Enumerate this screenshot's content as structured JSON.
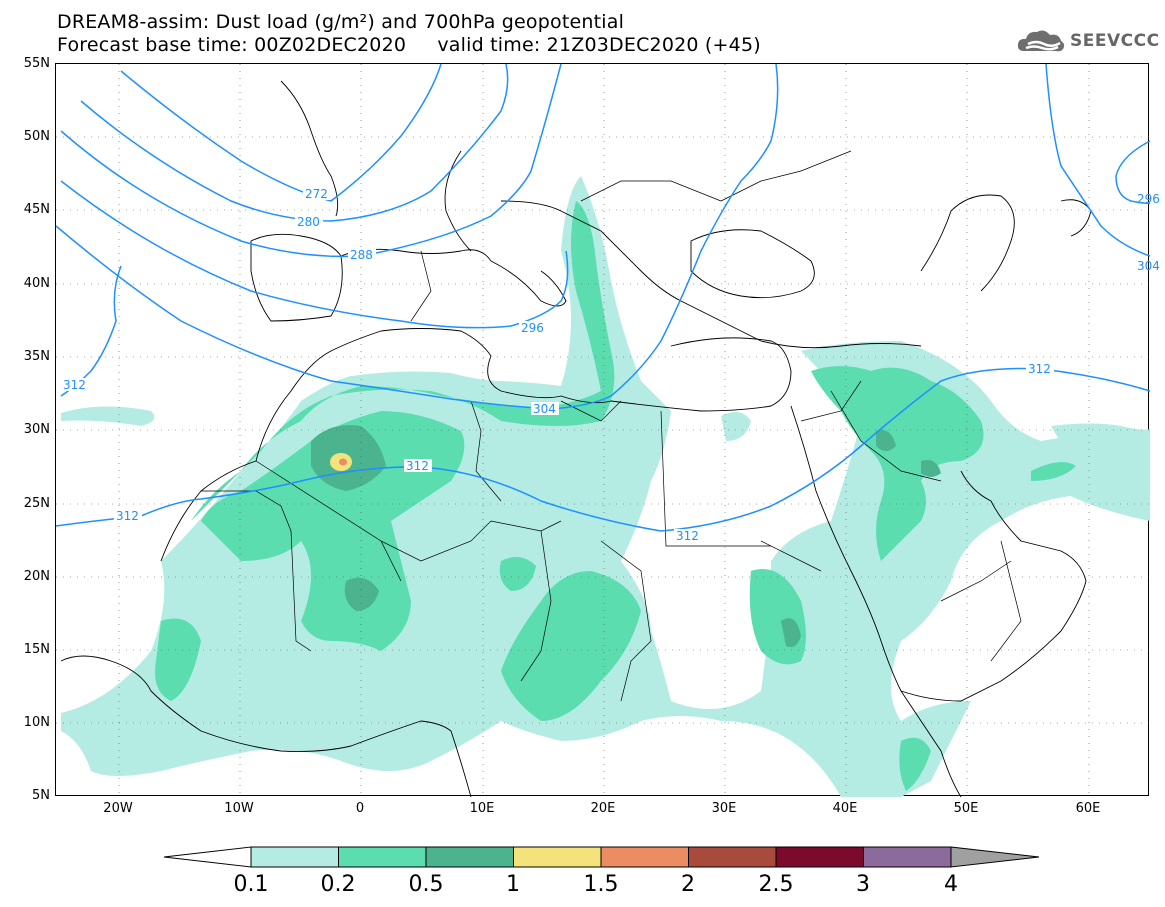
{
  "title_line1": "DREAM8-assim: Dust load (g/m²) and 700hPa geopotential",
  "title_line2": "Forecast base time: 00Z02DEC2020     valid time: 21Z03DEC2020 (+45)",
  "logo": {
    "text": "SEEVCCC",
    "icon": "cloud-icon"
  },
  "map": {
    "lat_labels": [
      "55N",
      "50N",
      "45N",
      "40N",
      "35N",
      "30N",
      "25N",
      "20N",
      "15N",
      "10N",
      "5N"
    ],
    "lon_labels": [
      "20W",
      "10W",
      "0",
      "10E",
      "20E",
      "30E",
      "40E",
      "50E",
      "60E"
    ],
    "geopotential_contours": [
      {
        "label": "272"
      },
      {
        "label": "280"
      },
      {
        "label": "288"
      },
      {
        "label": "296"
      },
      {
        "label": "304"
      },
      {
        "label": "312"
      },
      {
        "label": "312"
      },
      {
        "label": "312"
      },
      {
        "label": "312"
      },
      {
        "label": "312"
      },
      {
        "label": "296"
      },
      {
        "label": "304"
      }
    ]
  },
  "colorbar": {
    "levels": [
      "0.1",
      "0.2",
      "0.5",
      "1",
      "1.5",
      "2",
      "2.5",
      "3",
      "4"
    ],
    "colors": [
      "#ffffff",
      "#b4ece4",
      "#5cddb0",
      "#4bb48f",
      "#f4e27a",
      "#ec8c62",
      "#a84b3c",
      "#7c0a2c",
      "#8c6a9c",
      "#a0a0a0"
    ]
  },
  "colors": {
    "contour": "#1e90ff",
    "dust_light": "#b4ece4",
    "dust_mid": "#5cddb0",
    "dust_dark": "#4bb48f",
    "dust_yellow": "#f4e27a",
    "dust_orange": "#ec8c62"
  }
}
